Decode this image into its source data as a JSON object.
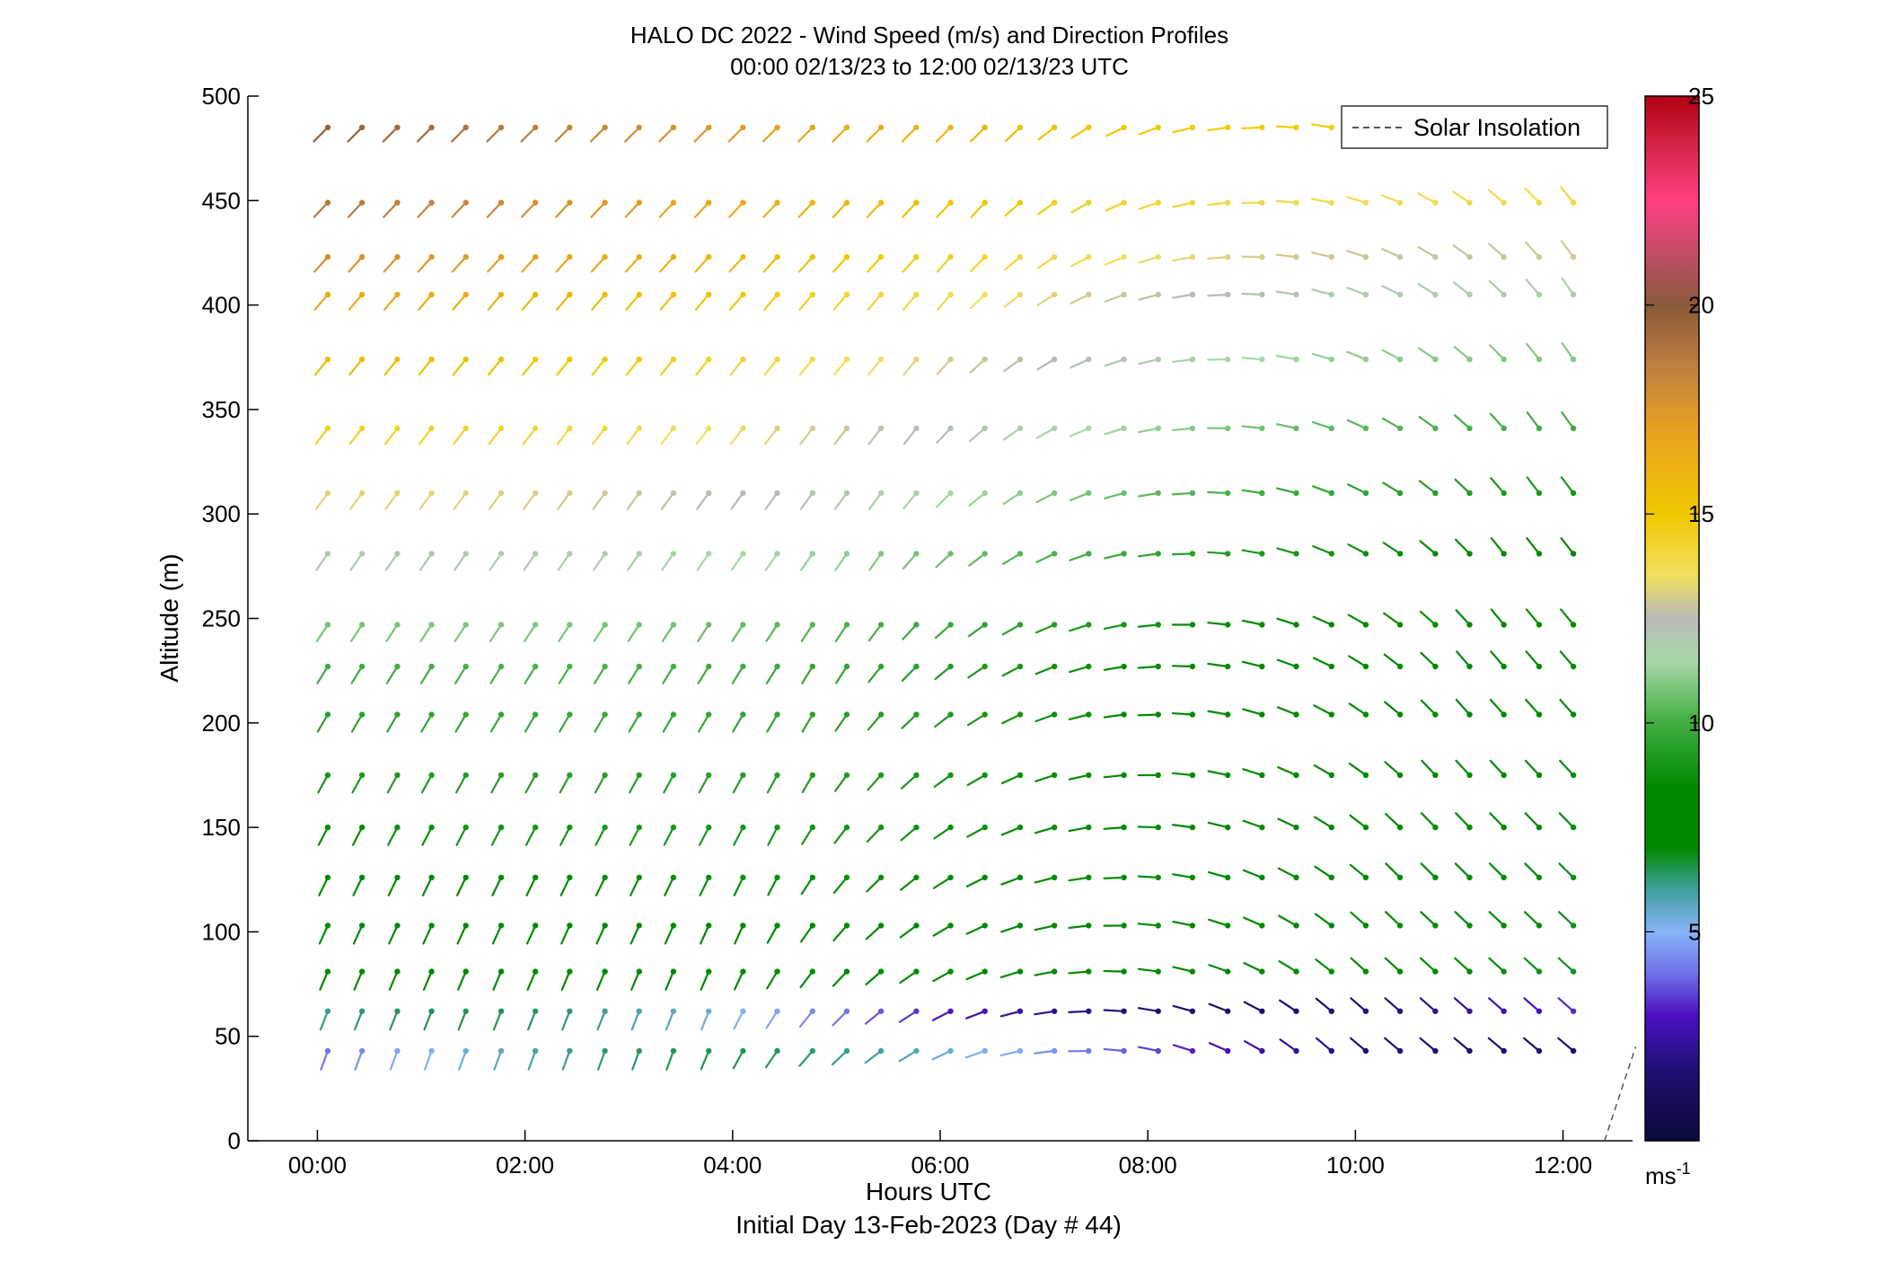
{
  "chart_data": {
    "type": "wind-barb-profile",
    "title": "HALO DC 2022 - Wind Speed (m/s) and Direction Profiles",
    "subtitle": "00:00 02/13/23 to 12:00 02/13/23  UTC",
    "xlabel": "Hours UTC",
    "xlabel2": "Initial Day 13-Feb-2023 (Day # 44)",
    "ylabel": "Altitude (m)",
    "x_ticks": [
      "00:00",
      "02:00",
      "04:00",
      "06:00",
      "08:00",
      "10:00",
      "12:00"
    ],
    "x_tick_hours": [
      0,
      2,
      4,
      6,
      8,
      10,
      12
    ],
    "xlim_hours": [
      -0.67,
      12.67
    ],
    "y_ticks": [
      "0",
      "50",
      "100",
      "150",
      "200",
      "250",
      "300",
      "350",
      "400",
      "450",
      "500"
    ],
    "ylim": [
      0,
      500
    ],
    "colorbar": {
      "ticks": [
        "5",
        "10",
        "15",
        "20",
        "25"
      ],
      "range": [
        0,
        25
      ],
      "unit_base": "ms",
      "unit_exp": "-1",
      "stops": [
        [
          0,
          "#0a0a3a"
        ],
        [
          1.5,
          "#1a0f6a"
        ],
        [
          3,
          "#4a10c0"
        ],
        [
          4,
          "#7070e8"
        ],
        [
          5,
          "#88b4f8"
        ],
        [
          6,
          "#40a0a0"
        ],
        [
          7,
          "#008a00"
        ],
        [
          8.5,
          "#008a00"
        ],
        [
          10,
          "#40ad40"
        ],
        [
          11.5,
          "#a8d8a8"
        ],
        [
          12.5,
          "#b8b8b8"
        ],
        [
          13.5,
          "#f0e060"
        ],
        [
          15,
          "#f0c800"
        ],
        [
          17,
          "#e8a020"
        ],
        [
          18.5,
          "#c08040"
        ],
        [
          20,
          "#8a5a3a"
        ],
        [
          21,
          "#b85060"
        ],
        [
          22.5,
          "#ff4080"
        ],
        [
          24,
          "#d02040"
        ],
        [
          25,
          "#b00010"
        ]
      ]
    },
    "legend": {
      "label": "Solar Insolation",
      "placement": "top-right",
      "line_style": "dashed",
      "color": "#555555"
    },
    "solar_insolation_line": {
      "x_hours": [
        12.4,
        12.7
      ],
      "y_m": [
        0,
        45
      ]
    },
    "times_hours": [
      0.1,
      0.43,
      0.77,
      1.1,
      1.43,
      1.77,
      2.1,
      2.43,
      2.77,
      3.1,
      3.43,
      3.77,
      4.1,
      4.43,
      4.77,
      5.1,
      5.43,
      5.77,
      6.1,
      6.43,
      6.77,
      7.1,
      7.43,
      7.77,
      8.1,
      8.43,
      8.77,
      9.1,
      9.43,
      9.77,
      10.1,
      10.43,
      10.77,
      11.1,
      11.43,
      11.77,
      12.1
    ],
    "altitudes_m": [
      43,
      62,
      81,
      103,
      126,
      150,
      175,
      204,
      227,
      247,
      281,
      310,
      341,
      374,
      405,
      423,
      449,
      485
    ],
    "wind_model": {
      "note": "barb data in direction (deg from) and speed (m/s) interpolated over the grid",
      "direction_deg_at_start": {
        "low": 200,
        "mid": 205,
        "high": 225
      },
      "direction_deg_at_end": {
        "low": 310,
        "mid": 305,
        "high": 330
      },
      "speed_ms_low": 6.5,
      "speed_ms_mid": 8.5,
      "speed_ms_high": 17.5
    }
  }
}
